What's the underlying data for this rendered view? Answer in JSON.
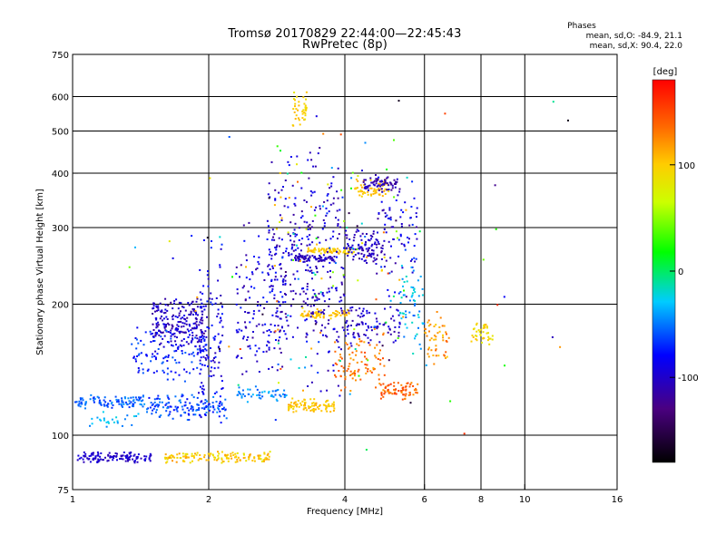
{
  "title_line1": "Tromsø 20170829 22:44:00—22:45:43",
  "title_line2": "RwPretec (8p)",
  "stats": {
    "title": "Phases",
    "line1": "mean, sd,O: -84.9, 21.1",
    "line2": "mean, sd,X:  90.4, 22.0"
  },
  "colorbar": {
    "unit": "[deg]",
    "ticks": [
      {
        "label": "100",
        "value": 100
      },
      {
        "label": "0",
        "value": 0
      },
      {
        "label": "-100",
        "value": -100
      }
    ],
    "range": [
      -180,
      180
    ]
  },
  "chart_data": {
    "type": "scatter",
    "title": "Tromsø 20170829 22:44:00—22:45:43",
    "subtitle": "RwPretec (8p)",
    "xlabel": "Frequency [MHz]",
    "ylabel": "Stationary phase Virtual Height [km]",
    "xscale": "log",
    "yscale": "log",
    "xlim": [
      1,
      16
    ],
    "ylim": [
      75,
      750
    ],
    "x_ticks": [
      {
        "label": "1",
        "value": 1
      },
      {
        "label": "2",
        "value": 2
      },
      {
        "label": "4",
        "value": 4
      },
      {
        "label": "6",
        "value": 6
      },
      {
        "label": "8",
        "value": 8
      },
      {
        "label": "10",
        "value": 10
      },
      {
        "label": "16",
        "value": 16
      }
    ],
    "y_ticks": [
      {
        "label": "750",
        "value": 750
      },
      {
        "label": "600",
        "value": 600
      },
      {
        "label": "500",
        "value": 500
      },
      {
        "label": "400",
        "value": 400
      },
      {
        "label": "300",
        "value": 300
      },
      {
        "label": "200",
        "value": 200
      },
      {
        "label": "100",
        "value": 100
      },
      {
        "label": "75",
        "value": 75
      }
    ],
    "grid_x": [
      2,
      4,
      6,
      8,
      10
    ],
    "grid_y": [
      100,
      200,
      300,
      400,
      500,
      600
    ],
    "grid": true,
    "colorbar_range": [
      -180,
      180
    ],
    "clusters": [
      {
        "x": [
          1.02,
          1.5
        ],
        "y": [
          86,
          92
        ],
        "phase": [
          -110,
          -90
        ],
        "n": 120
      },
      {
        "x": [
          1.6,
          2.75
        ],
        "y": [
          86,
          92
        ],
        "phase": [
          80,
          120
        ],
        "n": 140
      },
      {
        "x": [
          1.0,
          1.45
        ],
        "y": [
          115,
          124
        ],
        "phase": [
          -70,
          -40
        ],
        "n": 100
      },
      {
        "x": [
          1.05,
          1.4
        ],
        "y": [
          103,
          115
        ],
        "phase": [
          -50,
          -20
        ],
        "n": 25
      },
      {
        "x": [
          1.45,
          2.2
        ],
        "y": [
          108,
          125
        ],
        "phase": [
          -80,
          -45
        ],
        "n": 140
      },
      {
        "x": [
          1.5,
          1.95
        ],
        "y": [
          150,
          210
        ],
        "phase": [
          -120,
          -85
        ],
        "n": 220
      },
      {
        "x": [
          1.35,
          2.0
        ],
        "y": [
          130,
          180
        ],
        "phase": [
          -90,
          -55
        ],
        "n": 110
      },
      {
        "x": [
          1.9,
          2.15
        ],
        "y": [
          100,
          300
        ],
        "phase": [
          -110,
          -70
        ],
        "n": 120
      },
      {
        "x": [
          2.3,
          3.0
        ],
        "y": [
          120,
          330
        ],
        "phase": [
          -120,
          -70
        ],
        "n": 160
      },
      {
        "x": [
          2.3,
          3.0
        ],
        "y": [
          118,
          130
        ],
        "phase": [
          -60,
          -30
        ],
        "n": 50
      },
      {
        "x": [
          2.7,
          3.4
        ],
        "y": [
          150,
          480
        ],
        "phase": [
          -120,
          -75
        ],
        "n": 150
      },
      {
        "x": [
          3.0,
          3.8
        ],
        "y": [
          112,
          122
        ],
        "phase": [
          90,
          115
        ],
        "n": 90
      },
      {
        "x": [
          3.05,
          3.3
        ],
        "y": [
          500,
          620
        ],
        "phase": [
          80,
          110
        ],
        "n": 40
      },
      {
        "x": [
          3.1,
          3.8
        ],
        "y": [
          250,
          260
        ],
        "phase": [
          -115,
          -95
        ],
        "n": 70
      },
      {
        "x": [
          3.3,
          4.2
        ],
        "y": [
          260,
          270
        ],
        "phase": [
          90,
          115
        ],
        "n": 70
      },
      {
        "x": [
          3.2,
          4.1
        ],
        "y": [
          185,
          195
        ],
        "phase": [
          95,
          115
        ],
        "n": 70
      },
      {
        "x": [
          3.3,
          4.0
        ],
        "y": [
          120,
          480
        ],
        "phase": [
          -120,
          -80
        ],
        "n": 150
      },
      {
        "x": [
          4.0,
          4.9
        ],
        "y": [
          240,
          300
        ],
        "phase": [
          -120,
          -90
        ],
        "n": 100
      },
      {
        "x": [
          4.2,
          5.0
        ],
        "y": [
          350,
          390
        ],
        "phase": [
          90,
          115
        ],
        "n": 60
      },
      {
        "x": [
          4.4,
          5.3
        ],
        "y": [
          355,
          400
        ],
        "phase": [
          -125,
          -95
        ],
        "n": 70
      },
      {
        "x": [
          4.0,
          5.3
        ],
        "y": [
          160,
          200
        ],
        "phase": [
          -115,
          -85
        ],
        "n": 90
      },
      {
        "x": [
          3.8,
          4.9
        ],
        "y": [
          120,
          180
        ],
        "phase": [
          110,
          150
        ],
        "n": 90
      },
      {
        "x": [
          4.8,
          5.8
        ],
        "y": [
          120,
          135
        ],
        "phase": [
          120,
          160
        ],
        "n": 70
      },
      {
        "x": [
          4.7,
          5.8
        ],
        "y": [
          200,
          400
        ],
        "phase": [
          -120,
          -60
        ],
        "n": 80
      },
      {
        "x": [
          5.3,
          6.0
        ],
        "y": [
          150,
          260
        ],
        "phase": [
          -60,
          -10
        ],
        "n": 60
      },
      {
        "x": [
          6.0,
          6.8
        ],
        "y": [
          140,
          200
        ],
        "phase": [
          95,
          140
        ],
        "n": 50
      },
      {
        "x": [
          7.6,
          8.6
        ],
        "y": [
          160,
          185
        ],
        "phase": [
          80,
          110
        ],
        "n": 40
      },
      {
        "x": [
          2.8,
          5.5
        ],
        "y": [
          100,
          600
        ],
        "phase": [
          -150,
          150
        ],
        "n": 120
      },
      {
        "x": [
          1.3,
          12.5
        ],
        "y": [
          78,
          640
        ],
        "phase": [
          -170,
          170
        ],
        "n": 60
      }
    ]
  }
}
